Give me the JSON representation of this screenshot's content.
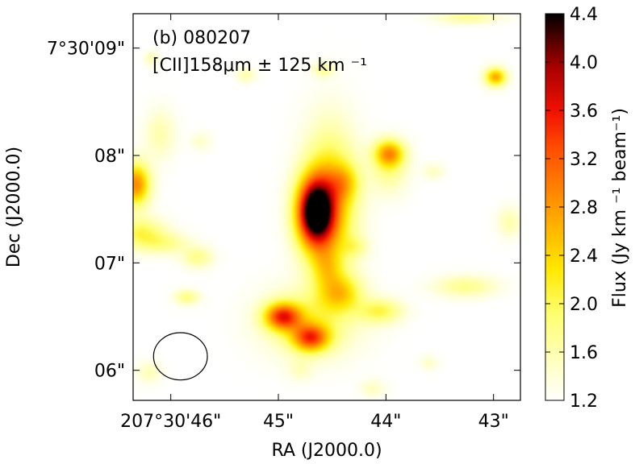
{
  "chart_data": {
    "type": "heatmap",
    "panel_label": "(b) 080207",
    "line_label": "[CII]158μm ± 125 km ⁻¹",
    "xlabel": "RA (J2000.0)",
    "ylabel": "Dec (J2000.0)",
    "colorbar_label": "Flux (Jy km ⁻¹ beam⁻¹)",
    "colormap": "afmhot_r",
    "colorbar_range": [
      1.2,
      4.4
    ],
    "colorbar_ticks": [
      "1.2",
      "1.6",
      "2.0",
      "2.4",
      "2.8",
      "3.2",
      "3.6",
      "4.0",
      "4.4"
    ],
    "colorbar_tick_values": [
      1.2,
      1.6,
      2.0,
      2.4,
      2.8,
      3.2,
      3.6,
      4.0,
      4.4
    ],
    "x_ticks": [
      "207°30'46\"",
      "45\"",
      "44\"",
      "43\""
    ],
    "x_tick_seconds": [
      46,
      45,
      44,
      43
    ],
    "xlim_seconds": [
      46.35,
      42.75
    ],
    "y_ticks": [
      "7°30'09\"",
      "08\"",
      "07\"",
      "06\""
    ],
    "y_tick_seconds": [
      9,
      8,
      7,
      6
    ],
    "ylim_seconds": [
      5.72,
      9.32
    ],
    "beam": {
      "ra_s": 45.91,
      "dec_s": 6.13,
      "width_s": 0.5,
      "height_s": 0.44
    },
    "emission_blobs": [
      {
        "ra_s": 44.66,
        "dec_s": 7.47,
        "sx": 0.12,
        "sy": 0.22,
        "peak": 4.4
      },
      {
        "ra_s": 44.52,
        "dec_s": 7.55,
        "sx": 0.17,
        "sy": 0.45,
        "peak": 2.6
      },
      {
        "ra_s": 44.38,
        "dec_s": 7.75,
        "sx": 0.1,
        "sy": 0.12,
        "peak": 1.9
      },
      {
        "ra_s": 44.96,
        "dec_s": 6.5,
        "sx": 0.12,
        "sy": 0.09,
        "peak": 3.2
      },
      {
        "ra_s": 44.7,
        "dec_s": 6.3,
        "sx": 0.12,
        "sy": 0.09,
        "peak": 3.0
      },
      {
        "ra_s": 44.7,
        "dec_s": 6.45,
        "sx": 0.3,
        "sy": 0.22,
        "peak": 1.9
      },
      {
        "ra_s": 44.42,
        "dec_s": 6.72,
        "sx": 0.14,
        "sy": 0.12,
        "peak": 2.2
      },
      {
        "ra_s": 44.05,
        "dec_s": 6.55,
        "sx": 0.14,
        "sy": 0.08,
        "peak": 2.0
      },
      {
        "ra_s": 44.55,
        "dec_s": 6.95,
        "sx": 0.1,
        "sy": 0.12,
        "peak": 1.8
      },
      {
        "ra_s": 43.97,
        "dec_s": 8.02,
        "sx": 0.1,
        "sy": 0.09,
        "peak": 2.7
      },
      {
        "ra_s": 43.97,
        "dec_s": 7.85,
        "sx": 0.12,
        "sy": 0.15,
        "peak": 1.7
      },
      {
        "ra_s": 42.98,
        "dec_s": 8.73,
        "sx": 0.07,
        "sy": 0.06,
        "peak": 2.7
      },
      {
        "ra_s": 46.32,
        "dec_s": 7.73,
        "sx": 0.09,
        "sy": 0.14,
        "peak": 2.9
      },
      {
        "ra_s": 46.28,
        "dec_s": 7.28,
        "sx": 0.16,
        "sy": 0.1,
        "peak": 2.0
      },
      {
        "ra_s": 46.05,
        "dec_s": 7.18,
        "sx": 0.16,
        "sy": 0.07,
        "peak": 1.7
      },
      {
        "ra_s": 45.75,
        "dec_s": 7.05,
        "sx": 0.1,
        "sy": 0.07,
        "peak": 1.75
      },
      {
        "ra_s": 46.1,
        "dec_s": 8.2,
        "sx": 0.1,
        "sy": 0.16,
        "peak": 1.6
      },
      {
        "ra_s": 45.72,
        "dec_s": 8.13,
        "sx": 0.07,
        "sy": 0.06,
        "peak": 1.45
      },
      {
        "ra_s": 46.18,
        "dec_s": 8.9,
        "sx": 0.05,
        "sy": 0.05,
        "peak": 1.55
      },
      {
        "ra_s": 45.3,
        "dec_s": 8.75,
        "sx": 0.06,
        "sy": 0.05,
        "peak": 1.6
      },
      {
        "ra_s": 44.58,
        "dec_s": 8.8,
        "sx": 0.07,
        "sy": 0.05,
        "peak": 1.7
      },
      {
        "ra_s": 45.85,
        "dec_s": 6.68,
        "sx": 0.08,
        "sy": 0.05,
        "peak": 1.8
      },
      {
        "ra_s": 43.26,
        "dec_s": 6.78,
        "sx": 0.2,
        "sy": 0.07,
        "peak": 1.75
      },
      {
        "ra_s": 43.56,
        "dec_s": 7.85,
        "sx": 0.07,
        "sy": 0.05,
        "peak": 1.5
      },
      {
        "ra_s": 42.85,
        "dec_s": 7.38,
        "sx": 0.08,
        "sy": 0.1,
        "peak": 1.6
      },
      {
        "ra_s": 43.6,
        "dec_s": 6.07,
        "sx": 0.06,
        "sy": 0.05,
        "peak": 1.45
      },
      {
        "ra_s": 44.12,
        "dec_s": 5.83,
        "sx": 0.08,
        "sy": 0.06,
        "peak": 1.5
      },
      {
        "ra_s": 46.2,
        "dec_s": 5.98,
        "sx": 0.08,
        "sy": 0.07,
        "peak": 1.55
      },
      {
        "ra_s": 43.24,
        "dec_s": 9.28,
        "sx": 0.2,
        "sy": 0.04,
        "peak": 1.7
      },
      {
        "ra_s": 44.28,
        "dec_s": 7.15,
        "sx": 0.08,
        "sy": 0.07,
        "peak": 1.6
      },
      {
        "ra_s": 44.8,
        "dec_s": 6.0,
        "sx": 0.08,
        "sy": 0.07,
        "peak": 1.45
      }
    ]
  }
}
